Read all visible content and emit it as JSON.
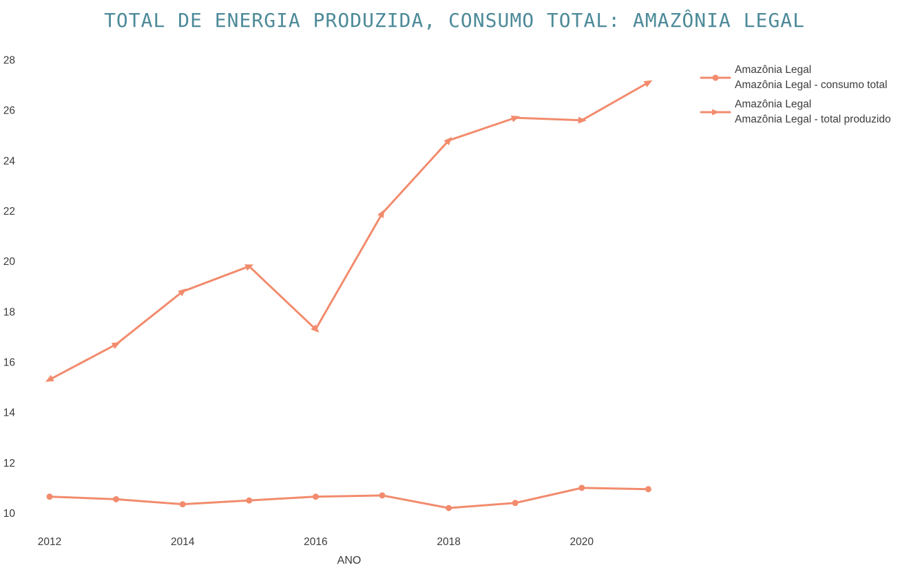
{
  "chart_data": {
    "type": "line",
    "title": "TOTAL DE ENERGIA PRODUZIDA, CONSUMO TOTAL: AMAZÔNIA LEGAL",
    "xlabel": "ANO",
    "ylabel": "",
    "x": [
      2012,
      2013,
      2014,
      2015,
      2016,
      2017,
      2018,
      2019,
      2020,
      2021
    ],
    "series": [
      {
        "name": "Amazônia Legal - consumo total",
        "legend_lines": [
          "Amazônia Legal",
          "Amazônia Legal - consumo total"
        ],
        "marker": "circle",
        "values": [
          10.65,
          10.55,
          10.35,
          10.5,
          10.65,
          10.7,
          10.2,
          10.4,
          11.0,
          10.95
        ]
      },
      {
        "name": "Amazônia Legal - total produzido",
        "legend_lines": [
          "Amazônia Legal",
          "Amazônia Legal - total produzido"
        ],
        "marker": "arrow",
        "values": [
          15.3,
          16.7,
          18.8,
          19.8,
          17.3,
          21.9,
          24.8,
          25.7,
          25.6,
          27.1
        ]
      }
    ],
    "xticks": [
      2012,
      2014,
      2016,
      2018,
      2020
    ],
    "yticks": [
      10,
      12,
      14,
      16,
      18,
      20,
      22,
      24,
      26,
      28
    ],
    "ylim": [
      9.4,
      28.8
    ],
    "grid": false,
    "legend_position": "right"
  },
  "colors": {
    "series": "#F28B6D",
    "title": "#4d8a99",
    "tick_text": "#3a3a3a"
  }
}
